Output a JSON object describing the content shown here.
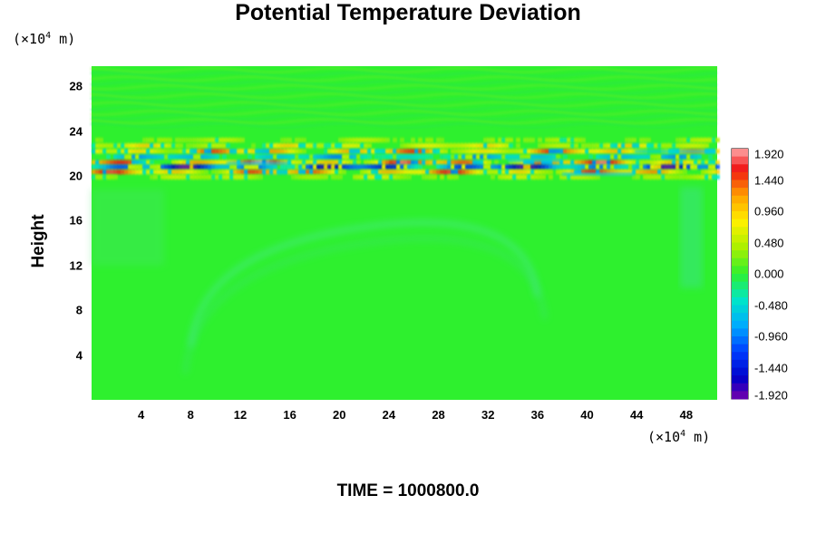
{
  "chart_data": {
    "type": "heatmap",
    "title": "Potential Temperature Deviation",
    "ylabel": "Height",
    "y_unit_prefix": "(×10",
    "unit_exp": "4",
    "unit_suffix": " m)",
    "x_ticks": [
      "4",
      "8",
      "12",
      "16",
      "20",
      "24",
      "28",
      "32",
      "36",
      "40",
      "44",
      "48"
    ],
    "y_ticks": [
      "4",
      "8",
      "12",
      "16",
      "20",
      "24",
      "28"
    ],
    "xlim": [
      0,
      50.5
    ],
    "ylim": [
      0,
      29.8
    ],
    "colorbar": {
      "min": -1.92,
      "max": 1.92,
      "step": 0.12,
      "labels": [
        "1.920",
        "1.440",
        "0.960",
        "0.480",
        "0.000",
        "-0.480",
        "-0.960",
        "-1.440",
        "-1.920"
      ]
    },
    "field_background": "#2ef02e",
    "features": [
      {
        "name": "perturbation-band",
        "y_range": [
          19.5,
          23.5
        ],
        "amplitude": 1.92
      },
      {
        "name": "gravity-wave-arc",
        "x_range": [
          8,
          36
        ],
        "y_range": [
          8,
          13
        ]
      }
    ],
    "footer": "TIME = 1000800.0"
  }
}
